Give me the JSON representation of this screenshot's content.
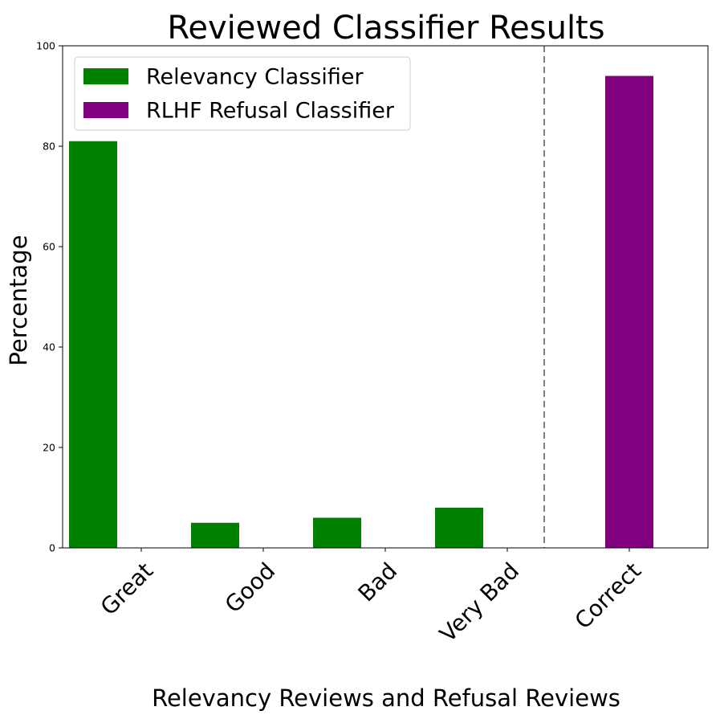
{
  "chart_data": {
    "type": "bar",
    "title": "Reviewed Classifier Results",
    "xlabel": "Relevancy Reviews and Refusal Reviews",
    "ylabel": "Percentage",
    "ylim": [
      0,
      100
    ],
    "yticks": [
      0,
      20,
      40,
      60,
      80,
      100
    ],
    "categories": [
      "Great",
      "Good",
      "Bad",
      "Very Bad",
      "Correct"
    ],
    "series": [
      {
        "name": "Relevancy Classifier",
        "color": "#008000",
        "values": [
          81,
          5,
          6,
          8,
          null
        ]
      },
      {
        "name": "RLHF Refusal Classifier",
        "color": "#800080",
        "values": [
          null,
          null,
          null,
          null,
          94
        ]
      }
    ],
    "divider_after_category": 3,
    "legend_position": "top-left",
    "grid": false
  }
}
